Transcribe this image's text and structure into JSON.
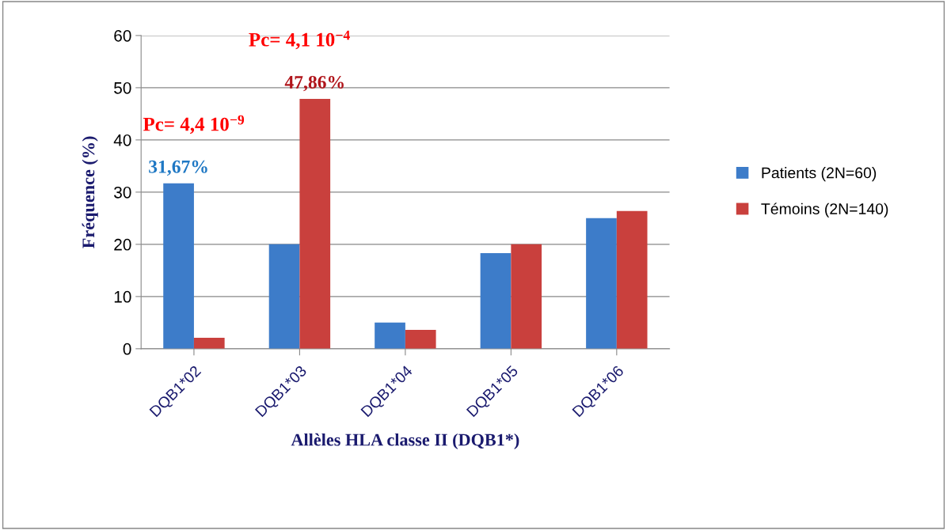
{
  "chart_data": {
    "type": "bar",
    "categories": [
      "DQB1*02",
      "DQB1*03",
      "DQB1*04",
      "DQB1*05",
      "DQB1*06"
    ],
    "series": [
      {
        "name": "Patients (2N=60)",
        "color": "#3d7cc9",
        "values": [
          31.67,
          20,
          5,
          18.3,
          25
        ],
        "value_labels": [
          "31,67%",
          null,
          null,
          null,
          null
        ]
      },
      {
        "name": "Témoins (2N=140)",
        "color": "#c9403d",
        "values": [
          2.1,
          47.86,
          3.6,
          20,
          26.4
        ],
        "value_labels": [
          null,
          "47,86%",
          null,
          null,
          null
        ]
      }
    ],
    "xlabel": "Allèles HLA classe II (DQB1*)",
    "ylabel": "Fréquence (%)",
    "ylim": [
      0,
      60
    ],
    "yticks": [
      0,
      10,
      20,
      30,
      40,
      50,
      60
    ],
    "annotations": [
      "Pc= 4,4 10$^{−9}$",
      "Pc= 4,1 10$^{−4}$"
    ],
    "grid": "y",
    "legend": "right"
  }
}
